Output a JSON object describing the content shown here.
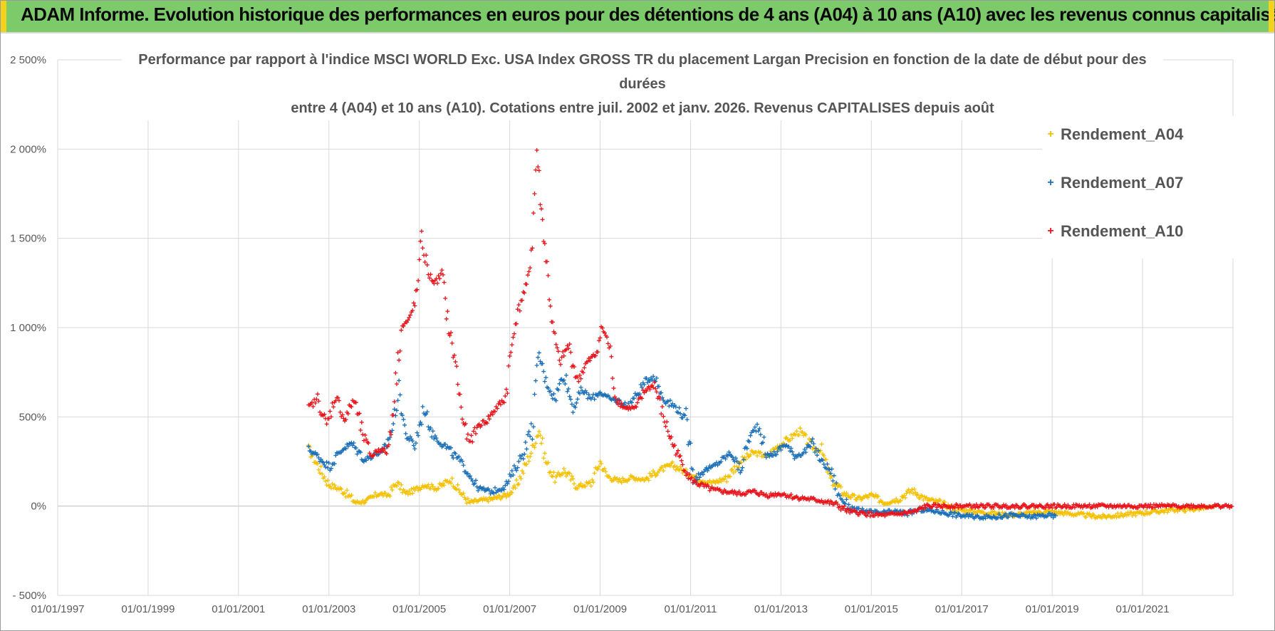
{
  "banner": {
    "title": "ADAM Informe. Evolution historique des performances en euros pour des détentions de 4 ans (A04) à 10 ans (A10) avec les revenus connus capitalisés",
    "color": "#7dca6b"
  },
  "chart_data": {
    "type": "scatter",
    "title_lines": [
      "Performance par rapport à l'indice MSCI WORLD Exc. USA Index GROSS TR  du placement Largan Precision  en fonction de la date de début pour des",
      "durées",
      "entre 4 (A04) et 10 ans (A10). Cotations entre juil. 2002 et janv. 2026. Revenus CAPITALISES depuis août"
    ],
    "x_ticks": [
      "01/01/1997",
      "01/01/1999",
      "01/01/2001",
      "01/01/2003",
      "01/01/2005",
      "01/01/2007",
      "01/01/2009",
      "01/01/2011",
      "01/01/2013",
      "01/01/2015",
      "01/01/2017",
      "01/01/2019",
      "01/01/2021"
    ],
    "xlim": [
      1997.0,
      2023.0
    ],
    "y_ticks": [
      "- 500%",
      "0%",
      "500%",
      "1 000%",
      "1 500%",
      "2 000%",
      "2 500%"
    ],
    "y_tick_values": [
      -500,
      0,
      500,
      1000,
      1500,
      2000,
      2500
    ],
    "ylim": [
      -500,
      2500
    ],
    "grid": true,
    "legend_position": "top-right",
    "marker": "+",
    "series": [
      {
        "name": "Rendement_A04",
        "color": "#f5c000",
        "x": [
          2002.55,
          2002.75,
          2003.0,
          2003.3,
          2003.6,
          2003.85,
          2004.1,
          2004.3,
          2004.5,
          2004.7,
          2004.9,
          2005.1,
          2005.4,
          2005.7,
          2005.9,
          2006.1,
          2006.3,
          2006.6,
          2006.9,
          2007.1,
          2007.3,
          2007.5,
          2007.65,
          2007.8,
          2008.0,
          2008.2,
          2008.5,
          2008.8,
          2009.0,
          2009.15,
          2009.4,
          2009.7,
          2010.0,
          2010.3,
          2010.6,
          2010.9,
          2011.2,
          2011.5,
          2011.8,
          2012.1,
          2012.4,
          2012.7,
          2012.9,
          2013.2,
          2013.4,
          2013.7,
          2013.9,
          2014.1,
          2014.4,
          2014.7,
          2015.0,
          2015.3,
          2015.6,
          2015.9,
          2016.2,
          2016.5,
          2016.9,
          2017.3,
          2017.7,
          2018.1,
          2018.5,
          2018.9,
          2019.3,
          2019.7,
          2020.1,
          2020.5,
          2020.9,
          2021.3,
          2021.7,
          2022.0,
          2022.3,
          2022.6
        ],
        "y": [
          320,
          230,
          120,
          90,
          20,
          30,
          70,
          60,
          130,
          70,
          90,
          120,
          100,
          150,
          80,
          20,
          30,
          40,
          60,
          90,
          200,
          320,
          430,
          250,
          150,
          200,
          110,
          130,
          250,
          170,
          140,
          160,
          150,
          200,
          230,
          190,
          150,
          130,
          160,
          250,
          300,
          280,
          330,
          380,
          420,
          330,
          310,
          150,
          70,
          40,
          60,
          20,
          40,
          90,
          40,
          20,
          -20,
          -30,
          -40,
          -50,
          -40,
          -30,
          -40,
          -50,
          -60,
          -50,
          -40,
          -30,
          -20,
          -20,
          -10,
          -10
        ]
      },
      {
        "name": "Rendement_A07",
        "color": "#1a6fb8",
        "x": [
          2002.55,
          2002.75,
          2003.0,
          2003.3,
          2003.5,
          2003.8,
          2004.0,
          2004.2,
          2004.4,
          2004.55,
          2004.7,
          2004.9,
          2005.1,
          2005.3,
          2005.6,
          2005.9,
          2006.1,
          2006.3,
          2006.6,
          2006.9,
          2007.1,
          2007.3,
          2007.5,
          2007.65,
          2007.8,
          2008.0,
          2008.2,
          2008.4,
          2008.6,
          2008.8,
          2009.0,
          2009.2,
          2009.4,
          2009.6,
          2009.8,
          2010.0,
          2010.2,
          2010.4,
          2010.7,
          2010.9,
          2011.1,
          2011.3,
          2011.5,
          2011.7,
          2011.9,
          2012.1,
          2012.3,
          2012.5,
          2012.7,
          2012.9,
          2013.1,
          2013.3,
          2013.5,
          2013.7,
          2013.9,
          2014.1,
          2014.3,
          2014.6,
          2014.9,
          2015.2,
          2015.5,
          2015.8,
          2016.1,
          2016.5,
          2016.9,
          2017.3,
          2017.7,
          2018.1,
          2018.5,
          2018.9,
          2019.1
        ],
        "y": [
          320,
          280,
          220,
          320,
          350,
          260,
          290,
          300,
          430,
          650,
          400,
          340,
          550,
          400,
          330,
          250,
          180,
          100,
          80,
          110,
          200,
          300,
          450,
          850,
          700,
          600,
          750,
          550,
          650,
          600,
          640,
          600,
          590,
          560,
          620,
          700,
          730,
          600,
          550,
          480,
          150,
          200,
          220,
          260,
          300,
          200,
          380,
          460,
          280,
          300,
          350,
          280,
          300,
          350,
          250,
          200,
          50,
          -20,
          -30,
          -40,
          -30,
          -40,
          -20,
          -30,
          -50,
          -60,
          -60,
          -50,
          -60,
          -50,
          -60
        ]
      },
      {
        "name": "Rendement_A10",
        "color": "#e8141b",
        "x": [
          2002.55,
          2002.75,
          2002.95,
          2003.15,
          2003.35,
          2003.55,
          2003.75,
          2003.95,
          2004.1,
          2004.3,
          2004.45,
          2004.6,
          2004.8,
          2004.95,
          2005.05,
          2005.2,
          2005.35,
          2005.5,
          2005.65,
          2005.8,
          2005.95,
          2006.1,
          2006.3,
          2006.5,
          2006.7,
          2006.9,
          2007.1,
          2007.25,
          2007.4,
          2007.5,
          2007.6,
          2007.7,
          2007.8,
          2007.95,
          2008.1,
          2008.3,
          2008.5,
          2008.7,
          2008.9,
          2009.05,
          2009.2,
          2009.35,
          2009.55,
          2009.8,
          2010.0,
          2010.2,
          2010.4,
          2010.6,
          2010.8,
          2011.0,
          2011.2,
          2011.5,
          2011.8,
          2012.1,
          2012.4,
          2012.7,
          2013.0,
          2013.3,
          2013.6,
          2013.9,
          2014.2,
          2014.5,
          2014.8,
          2015.1,
          2015.4,
          2015.7,
          2016.0,
          2016.2,
          2016.5,
          2016.8,
          2017.2,
          2017.6,
          2018.0,
          2018.5,
          2019.0,
          2019.5,
          2020.0,
          2020.5,
          2021.0,
          2021.5,
          2022.0,
          2022.5,
          2023.0
        ],
        "y": [
          550,
          600,
          450,
          620,
          480,
          600,
          400,
          280,
          320,
          300,
          620,
          1000,
          1050,
          1200,
          1500,
          1300,
          1250,
          1300,
          1000,
          800,
          500,
          350,
          450,
          480,
          550,
          600,
          1000,
          1150,
          1250,
          1500,
          2000,
          1650,
          1400,
          1000,
          800,
          900,
          700,
          800,
          850,
          1000,
          900,
          600,
          550,
          550,
          650,
          680,
          500,
          350,
          250,
          150,
          120,
          90,
          80,
          70,
          80,
          60,
          70,
          50,
          40,
          30,
          10,
          -30,
          -40,
          -50,
          -50,
          -40,
          -30,
          0,
          0,
          0,
          0,
          0,
          0,
          0,
          0,
          0,
          0,
          0,
          0,
          0,
          0,
          0,
          0
        ]
      }
    ]
  }
}
